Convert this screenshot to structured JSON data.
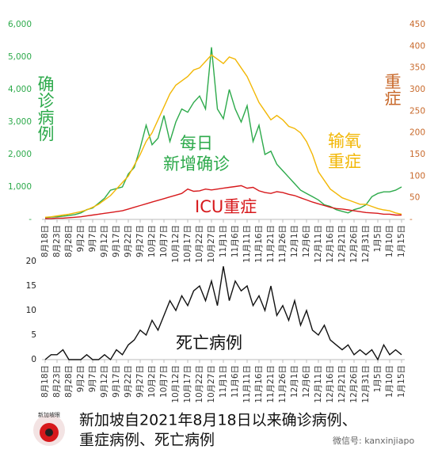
{
  "chart_data": [
    {
      "type": "line",
      "ylabel": "确诊病例",
      "y2label": "重症",
      "categories": [
        "8月18日",
        null,
        "8月23日",
        null,
        "8月28日",
        null,
        "9月2日",
        null,
        "9月7日",
        null,
        "9月12日",
        null,
        "9月17日",
        null,
        "9月22日",
        null,
        "9月27日",
        null,
        "10月2日",
        null,
        "10月7日",
        null,
        "10月12日",
        null,
        "10月17日",
        null,
        "10月22日",
        null,
        "10月27日",
        null,
        "11月1日",
        null,
        "11月6日",
        null,
        "11月11日",
        null,
        "11月16日",
        null,
        "11月21日",
        null,
        "11月26日",
        null,
        "12月1日",
        null,
        "12月6日",
        null,
        "12月11日",
        null,
        "12月16日",
        null,
        "12月21日",
        null,
        "12月26日",
        null,
        "12月31日",
        null,
        "1月5日",
        null,
        "1月10日",
        null,
        "1月15日"
      ],
      "ylim": [
        0,
        6000
      ],
      "yticks": [
        {
          "value": 0,
          "label": "-"
        },
        {
          "value": 1000,
          "label": "1,000"
        },
        {
          "value": 2000,
          "label": "2,000"
        },
        {
          "value": 3000,
          "label": "3,000"
        },
        {
          "value": 4000,
          "label": "4,000"
        },
        {
          "value": 5000,
          "label": "5,000"
        },
        {
          "value": 6000,
          "label": "6,000"
        }
      ],
      "y2lim": [
        0,
        450
      ],
      "y2ticks": [
        {
          "value": 0,
          "label": "-"
        },
        50,
        100,
        150,
        200,
        250,
        300,
        350,
        400,
        450
      ],
      "series": [
        {
          "name": "每日\n新增确诊",
          "color": "#2daa4b",
          "values": [
            50,
            70,
            80,
            100,
            120,
            150,
            200,
            300,
            350,
            500,
            650,
            900,
            950,
            1000,
            1400,
            1600,
            2200,
            2900,
            2300,
            2500,
            3200,
            2400,
            3000,
            3400,
            3300,
            3600,
            3800,
            3400,
            5300,
            3400,
            3100,
            4000,
            3400,
            3000,
            3500,
            2400,
            2900,
            2000,
            2100,
            1700,
            1500,
            1300,
            1100,
            900,
            800,
            700,
            600,
            450,
            400,
            300,
            250,
            200,
            300,
            350,
            450,
            700,
            800,
            850,
            850,
            900,
            1000
          ]
        },
        {
          "name": "输氧\n重症",
          "color": "#f2b705",
          "axis": "y2",
          "values": [
            5,
            6,
            8,
            10,
            12,
            15,
            18,
            22,
            28,
            35,
            45,
            55,
            70,
            85,
            100,
            125,
            150,
            180,
            200,
            230,
            260,
            290,
            310,
            320,
            330,
            345,
            350,
            365,
            380,
            370,
            360,
            375,
            370,
            350,
            330,
            300,
            270,
            250,
            230,
            240,
            230,
            215,
            210,
            200,
            180,
            150,
            110,
            90,
            70,
            60,
            50,
            45,
            40,
            35,
            35,
            30,
            25,
            22,
            20,
            15,
            12
          ]
        },
        {
          "name": "ICU重症",
          "color": "#d7191c",
          "axis": "y2",
          "values": [
            2,
            2,
            3,
            3,
            4,
            5,
            6,
            8,
            10,
            12,
            14,
            16,
            18,
            20,
            24,
            28,
            32,
            36,
            40,
            44,
            48,
            52,
            56,
            60,
            70,
            65,
            66,
            70,
            68,
            70,
            72,
            74,
            76,
            78,
            72,
            74,
            66,
            62,
            60,
            64,
            62,
            58,
            55,
            50,
            45,
            40,
            36,
            32,
            28,
            25,
            24,
            22,
            20,
            18,
            16,
            15,
            14,
            12,
            12,
            10,
            10
          ]
        }
      ]
    },
    {
      "type": "line",
      "categories": [
        "8月18日",
        null,
        "8月23日",
        null,
        "8月28日",
        null,
        "9月2日",
        null,
        "9月7日",
        null,
        "9月12日",
        null,
        "9月17日",
        null,
        "9月22日",
        null,
        "9月27日",
        null,
        "10月2日",
        null,
        "10月7日",
        null,
        "10月12日",
        null,
        "10月17日",
        null,
        "10月22日",
        null,
        "10月27日",
        null,
        "11月1日",
        null,
        "11月6日",
        null,
        "11月11日",
        null,
        "11月16日",
        null,
        "11月21日",
        null,
        "11月26日",
        null,
        "12月1日",
        null,
        "12月6日",
        null,
        "12月11日",
        null,
        "12月16日",
        null,
        "12月21日",
        null,
        "12月26日",
        null,
        "12月31日",
        null,
        "1月5日",
        null,
        "1月10日",
        null,
        "1月15日"
      ],
      "ylim": [
        0,
        20
      ],
      "yticks": [
        0,
        5,
        10,
        15,
        20
      ],
      "series": [
        {
          "name": "死亡病例",
          "color": "#111111",
          "values": [
            0,
            1,
            1,
            2,
            0,
            0,
            0,
            1,
            0,
            0,
            1,
            0,
            2,
            1,
            3,
            4,
            6,
            5,
            8,
            6,
            9,
            12,
            10,
            13,
            11,
            14,
            15,
            12,
            16,
            11,
            19,
            12,
            16,
            14,
            15,
            11,
            13,
            10,
            15,
            9,
            11,
            8,
            12,
            7,
            10,
            6,
            5,
            7,
            4,
            3,
            2,
            3,
            1,
            2,
            1,
            2,
            0,
            3,
            1,
            2,
            1
          ]
        }
      ]
    }
  ],
  "footer": {
    "caption": [
      "新加坡自2021年8月18日以来确诊病例、",
      "重症病例、死亡病例"
    ],
    "logo": "新加坡眼",
    "watermark": "微信号: kanxinjiapo"
  }
}
